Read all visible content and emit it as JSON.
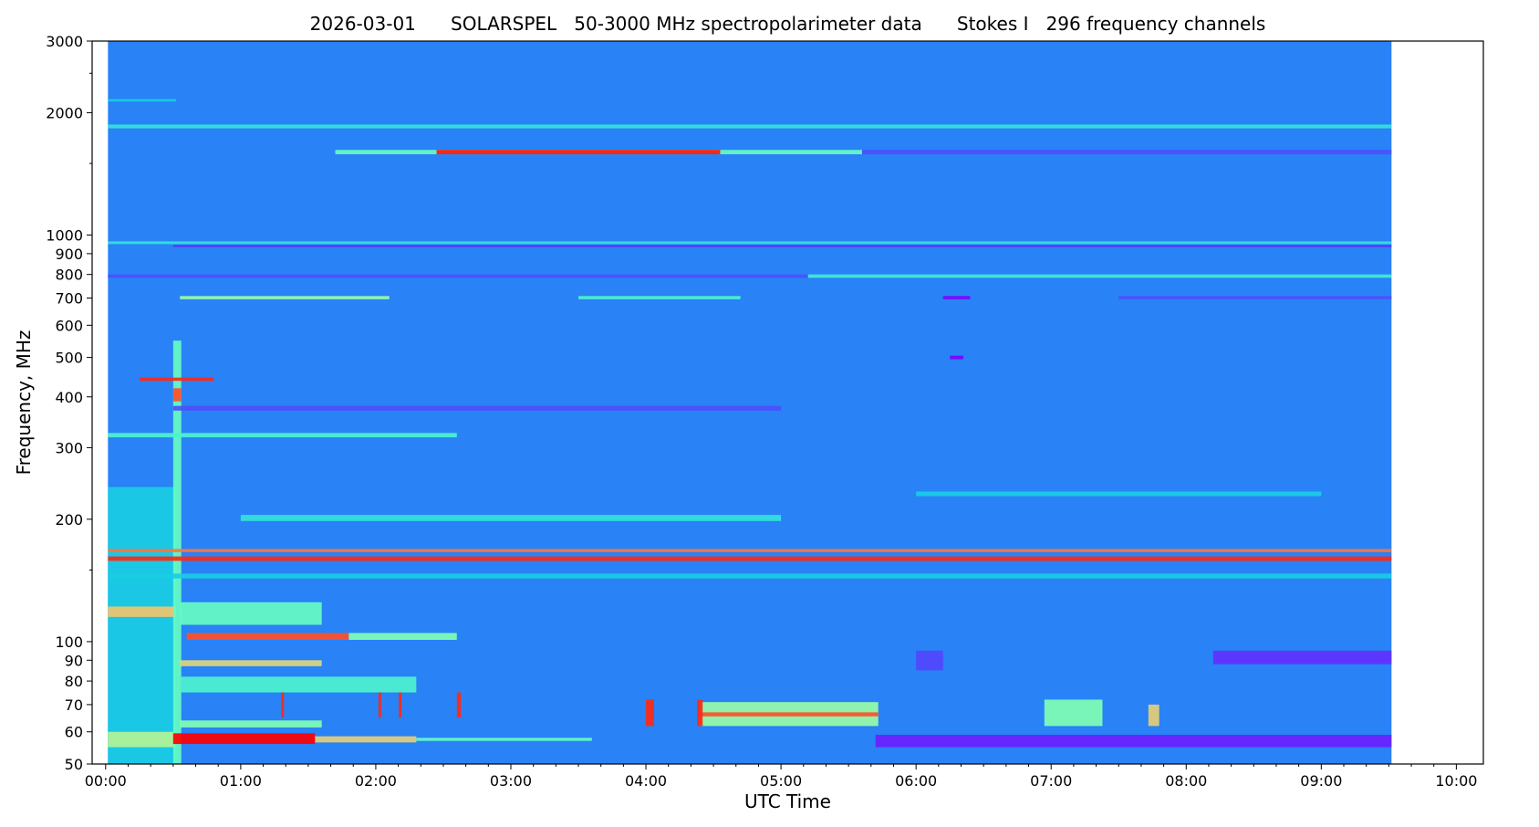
{
  "chart_data": {
    "type": "heatmap",
    "title_parts": [
      "2026-03-01",
      "SOLARSPEL   50-3000 MHz spectropolarimeter data",
      "Stokes I   296 frequency channels"
    ],
    "xlabel": "UTC Time",
    "ylabel": "Frequency, MHz",
    "xlim_hours": [
      -0.1,
      10.2
    ],
    "ylim": [
      50,
      3000
    ],
    "yscale": "log",
    "colormap": "rainbow",
    "data_time_range_hours": [
      0.017,
      9.52
    ],
    "x_ticks": [
      {
        "h": 0,
        "label": "00:00"
      },
      {
        "h": 1,
        "label": "01:00"
      },
      {
        "h": 2,
        "label": "02:00"
      },
      {
        "h": 3,
        "label": "03:00"
      },
      {
        "h": 4,
        "label": "04:00"
      },
      {
        "h": 5,
        "label": "05:00"
      },
      {
        "h": 6,
        "label": "06:00"
      },
      {
        "h": 7,
        "label": "07:00"
      },
      {
        "h": 8,
        "label": "08:00"
      },
      {
        "h": 9,
        "label": "09:00"
      },
      {
        "h": 10,
        "label": "10:00"
      }
    ],
    "y_ticks": [
      {
        "f": 50,
        "label": "50"
      },
      {
        "f": 60,
        "label": "60"
      },
      {
        "f": 70,
        "label": "70"
      },
      {
        "f": 80,
        "label": "80"
      },
      {
        "f": 90,
        "label": "90"
      },
      {
        "f": 100,
        "label": "100"
      },
      {
        "f": 200,
        "label": "200"
      },
      {
        "f": 300,
        "label": "300"
      },
      {
        "f": 400,
        "label": "400"
      },
      {
        "f": 500,
        "label": "500"
      },
      {
        "f": 600,
        "label": "600"
      },
      {
        "f": 700,
        "label": "700"
      },
      {
        "f": 800,
        "label": "800"
      },
      {
        "f": 900,
        "label": "900"
      },
      {
        "f": 1000,
        "label": "1000"
      },
      {
        "f": 2000,
        "label": "2000"
      },
      {
        "f": 3000,
        "label": "3000"
      }
    ],
    "y_minor_ticks": [
      150,
      1500,
      2500
    ],
    "background_intensity": 0.17,
    "features": [
      {
        "name": "early-lowfreq-region",
        "t": [
          0.017,
          0.52
        ],
        "f": [
          50,
          240
        ],
        "v": 0.3
      },
      {
        "name": "early-band-120",
        "t": [
          0.017,
          0.52
        ],
        "f": [
          115,
          122
        ],
        "v": 0.72
      },
      {
        "name": "early-band-57",
        "t": [
          0.017,
          0.52
        ],
        "f": [
          55,
          60
        ],
        "v": 0.6
      },
      {
        "name": "onset-vertical",
        "t": [
          0.5,
          0.56
        ],
        "f": [
          50,
          550
        ],
        "v": 0.45
      },
      {
        "name": "burst-57-core",
        "t": [
          0.5,
          1.55
        ],
        "f": [
          56,
          59.5
        ],
        "v": 1.0
      },
      {
        "name": "burst-57-tail",
        "t": [
          1.55,
          2.3
        ],
        "f": [
          56.5,
          58.5
        ],
        "v": 0.7
      },
      {
        "name": "burst-57-decay",
        "t": [
          2.3,
          3.6
        ],
        "f": [
          57,
          58
        ],
        "v": 0.45
      },
      {
        "name": "band-63",
        "t": [
          0.55,
          1.6
        ],
        "f": [
          61.5,
          64
        ],
        "v": 0.5
      },
      {
        "name": "band-103-core",
        "t": [
          0.6,
          1.8
        ],
        "f": [
          101,
          105
        ],
        "v": 0.9
      },
      {
        "name": "band-103-tail",
        "t": [
          1.8,
          2.6
        ],
        "f": [
          101,
          105
        ],
        "v": 0.5
      },
      {
        "name": "band-88",
        "t": [
          0.55,
          1.6
        ],
        "f": [
          87,
          90
        ],
        "v": 0.68
      },
      {
        "name": "band-115",
        "t": [
          0.55,
          1.6
        ],
        "f": [
          110,
          125
        ],
        "v": 0.45
      },
      {
        "name": "band-78",
        "t": [
          0.55,
          2.3
        ],
        "f": [
          75,
          82
        ],
        "v": 0.4
      },
      {
        "name": "violet-57",
        "t": [
          5.7,
          9.52
        ],
        "f": [
          55,
          59
        ],
        "v": 0.04
      },
      {
        "name": "violet-92",
        "t": [
          8.2,
          9.52
        ],
        "f": [
          88,
          95
        ],
        "v": 0.06
      },
      {
        "name": "violet-patch-90",
        "t": [
          6.0,
          6.2
        ],
        "f": [
          85,
          95
        ],
        "v": 0.09
      },
      {
        "name": "burst-66-region",
        "t": [
          4.4,
          5.72
        ],
        "f": [
          62,
          71
        ],
        "v": 0.55
      },
      {
        "name": "burst-66-core",
        "t": [
          4.4,
          5.72
        ],
        "f": [
          65.5,
          67
        ],
        "v": 0.9
      },
      {
        "name": "burst-66-b",
        "t": [
          6.95,
          7.38
        ],
        "f": [
          62,
          72
        ],
        "v": 0.5
      },
      {
        "name": "burst-66-c",
        "t": [
          7.72,
          7.8
        ],
        "f": [
          62,
          70
        ],
        "v": 0.7
      },
      {
        "name": "spike-4h",
        "t": [
          4.0,
          4.06
        ],
        "f": [
          62,
          72
        ],
        "v": 0.95
      },
      {
        "name": "spike-4.4h",
        "t": [
          4.38,
          4.42
        ],
        "f": [
          62,
          72
        ],
        "v": 0.95
      },
      {
        "name": "spike-1.3h",
        "t": [
          1.3,
          1.32
        ],
        "f": [
          65,
          75
        ],
        "v": 0.95
      },
      {
        "name": "spike-2h",
        "t": [
          2.02,
          2.04
        ],
        "f": [
          65,
          75
        ],
        "v": 0.95
      },
      {
        "name": "spike-2.15h",
        "t": [
          2.17,
          2.19
        ],
        "f": [
          65,
          75
        ],
        "v": 0.95
      },
      {
        "name": "spike-2.6h",
        "t": [
          2.6,
          2.63
        ],
        "f": [
          65,
          75
        ],
        "v": 0.95
      },
      {
        "name": "band-145",
        "t": [
          0.017,
          9.52
        ],
        "f": [
          143,
          147
        ],
        "v": 0.3
      },
      {
        "name": "line-160",
        "t": [
          0.017,
          9.52
        ],
        "f": [
          158,
          162
        ],
        "v": 0.95
      },
      {
        "name": "line-167",
        "t": [
          0.017,
          9.52
        ],
        "f": [
          166,
          169
        ],
        "v": 0.85
      },
      {
        "name": "band-200",
        "t": [
          1.0,
          5.0
        ],
        "f": [
          198,
          205
        ],
        "v": 0.35
      },
      {
        "name": "band-230",
        "t": [
          6.0,
          9.0
        ],
        "f": [
          228,
          234
        ],
        "v": 0.3
      },
      {
        "name": "band-320",
        "t": [
          0.017,
          2.6
        ],
        "f": [
          318,
          326
        ],
        "v": 0.4
      },
      {
        "name": "violet-375",
        "t": [
          0.5,
          5.0
        ],
        "f": [
          370,
          380
        ],
        "v": 0.1
      },
      {
        "name": "spot-400",
        "t": [
          0.5,
          0.56
        ],
        "f": [
          390,
          420
        ],
        "v": 0.9
      },
      {
        "name": "dots-440",
        "t": [
          0.25,
          0.8
        ],
        "f": [
          438,
          446
        ],
        "v": 0.95
      },
      {
        "name": "violet-500",
        "t": [
          6.25,
          6.35
        ],
        "f": [
          495,
          505
        ],
        "v": 0.0
      },
      {
        "name": "line-700-a",
        "t": [
          0.55,
          2.1
        ],
        "f": [
          695,
          708
        ],
        "v": 0.55
      },
      {
        "name": "line-700-b",
        "t": [
          3.5,
          4.7
        ],
        "f": [
          695,
          708
        ],
        "v": 0.4
      },
      {
        "name": "violet-700",
        "t": [
          6.2,
          6.4
        ],
        "f": [
          695,
          708
        ],
        "v": 0.0
      },
      {
        "name": "line-700-c",
        "t": [
          7.5,
          9.52
        ],
        "f": [
          695,
          708
        ],
        "v": 0.1
      },
      {
        "name": "line-790-a",
        "t": [
          0.017,
          5.2
        ],
        "f": [
          785,
          800
        ],
        "v": 0.1
      },
      {
        "name": "line-790-b",
        "t": [
          5.2,
          9.52
        ],
        "f": [
          785,
          800
        ],
        "v": 0.38
      },
      {
        "name": "line-940",
        "t": [
          0.5,
          9.52
        ],
        "f": [
          935,
          945
        ],
        "v": 0.05
      },
      {
        "name": "line-955",
        "t": [
          0.017,
          9.52
        ],
        "f": [
          950,
          965
        ],
        "v": 0.35
      },
      {
        "name": "line-1600-wide",
        "t": [
          1.7,
          5.6
        ],
        "f": [
          1580,
          1620
        ],
        "v": 0.45
      },
      {
        "name": "line-1600-core",
        "t": [
          2.45,
          4.55
        ],
        "f": [
          1580,
          1620
        ],
        "v": 0.97
      },
      {
        "name": "line-1600-violet",
        "t": [
          5.6,
          9.52
        ],
        "f": [
          1580,
          1620
        ],
        "v": 0.1
      },
      {
        "name": "line-1850",
        "t": [
          0.017,
          9.52
        ],
        "f": [
          1830,
          1870
        ],
        "v": 0.35
      },
      {
        "name": "line-2150",
        "t": [
          0.017,
          0.52
        ],
        "f": [
          2130,
          2160
        ],
        "v": 0.3
      }
    ]
  }
}
